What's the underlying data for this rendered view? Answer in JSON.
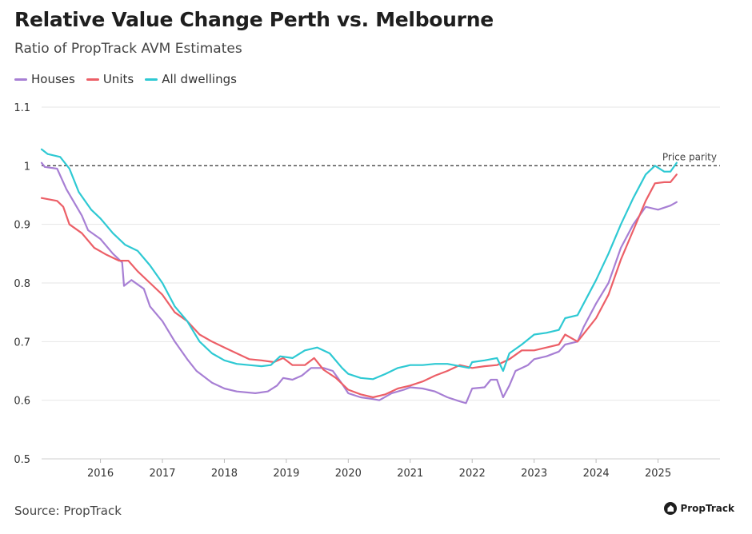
{
  "title": "Relative Value Change Perth vs. Melbourne",
  "subtitle": "Ratio of PropTrack AVM Estimates",
  "source": "Source: PropTrack",
  "brand": "PropTrack",
  "chart_data": {
    "type": "line",
    "title": "Relative Value Change Perth vs. Melbourne",
    "subtitle": "Ratio of PropTrack AVM Estimates",
    "xlim": [
      2015.05,
      2026.0
    ],
    "ylim": [
      0.5,
      1.1
    ],
    "x_ticks": [
      2016,
      2017,
      2018,
      2019,
      2020,
      2021,
      2022,
      2023,
      2024,
      2025
    ],
    "x_tick_labels": [
      "2016",
      "2017",
      "2018",
      "2019",
      "2020",
      "2021",
      "2022",
      "2023",
      "2024",
      "2025"
    ],
    "y_ticks": [
      0.5,
      0.6,
      0.7,
      0.8,
      0.9,
      1.0,
      1.1
    ],
    "y_tick_labels": [
      "0.5",
      "0.6",
      "0.7",
      "0.8",
      "0.9",
      "1",
      "1.1"
    ],
    "grid": "horizontal",
    "legend_position": "top-left",
    "reference_line": {
      "y": 1.0,
      "label": "Price parity",
      "style": "dashed",
      "color": "#444444"
    },
    "series": [
      {
        "name": "Houses",
        "color": "#a77fd4",
        "points": [
          [
            2015.05,
            1.005
          ],
          [
            2015.1,
            0.998
          ],
          [
            2015.3,
            0.995
          ],
          [
            2015.45,
            0.96
          ],
          [
            2015.7,
            0.915
          ],
          [
            2015.8,
            0.89
          ],
          [
            2016.0,
            0.875
          ],
          [
            2016.2,
            0.85
          ],
          [
            2016.35,
            0.835
          ],
          [
            2016.38,
            0.795
          ],
          [
            2016.5,
            0.805
          ],
          [
            2016.7,
            0.79
          ],
          [
            2016.8,
            0.76
          ],
          [
            2017.0,
            0.735
          ],
          [
            2017.2,
            0.7
          ],
          [
            2017.4,
            0.67
          ],
          [
            2017.55,
            0.65
          ],
          [
            2017.8,
            0.63
          ],
          [
            2018.0,
            0.62
          ],
          [
            2018.2,
            0.615
          ],
          [
            2018.5,
            0.612
          ],
          [
            2018.7,
            0.615
          ],
          [
            2018.85,
            0.625
          ],
          [
            2018.95,
            0.638
          ],
          [
            2019.1,
            0.635
          ],
          [
            2019.25,
            0.642
          ],
          [
            2019.4,
            0.655
          ],
          [
            2019.6,
            0.655
          ],
          [
            2019.75,
            0.65
          ],
          [
            2019.9,
            0.628
          ],
          [
            2020.0,
            0.612
          ],
          [
            2020.2,
            0.605
          ],
          [
            2020.4,
            0.602
          ],
          [
            2020.5,
            0.6
          ],
          [
            2020.7,
            0.612
          ],
          [
            2020.9,
            0.618
          ],
          [
            2021.0,
            0.622
          ],
          [
            2021.2,
            0.62
          ],
          [
            2021.4,
            0.615
          ],
          [
            2021.6,
            0.605
          ],
          [
            2021.8,
            0.598
          ],
          [
            2021.9,
            0.595
          ],
          [
            2022.0,
            0.62
          ],
          [
            2022.2,
            0.622
          ],
          [
            2022.3,
            0.635
          ],
          [
            2022.4,
            0.635
          ],
          [
            2022.5,
            0.605
          ],
          [
            2022.6,
            0.625
          ],
          [
            2022.7,
            0.65
          ],
          [
            2022.9,
            0.66
          ],
          [
            2023.0,
            0.67
          ],
          [
            2023.2,
            0.675
          ],
          [
            2023.4,
            0.683
          ],
          [
            2023.5,
            0.695
          ],
          [
            2023.7,
            0.7
          ],
          [
            2023.8,
            0.725
          ],
          [
            2024.0,
            0.765
          ],
          [
            2024.2,
            0.8
          ],
          [
            2024.4,
            0.86
          ],
          [
            2024.6,
            0.9
          ],
          [
            2024.8,
            0.93
          ],
          [
            2025.0,
            0.925
          ],
          [
            2025.2,
            0.932
          ],
          [
            2025.3,
            0.938
          ]
        ]
      },
      {
        "name": "Units",
        "color": "#ec5f67",
        "points": [
          [
            2015.05,
            0.945
          ],
          [
            2015.3,
            0.94
          ],
          [
            2015.4,
            0.93
          ],
          [
            2015.5,
            0.9
          ],
          [
            2015.7,
            0.885
          ],
          [
            2015.9,
            0.86
          ],
          [
            2016.1,
            0.848
          ],
          [
            2016.3,
            0.838
          ],
          [
            2016.45,
            0.838
          ],
          [
            2016.6,
            0.82
          ],
          [
            2016.8,
            0.8
          ],
          [
            2017.0,
            0.78
          ],
          [
            2017.2,
            0.75
          ],
          [
            2017.4,
            0.735
          ],
          [
            2017.6,
            0.712
          ],
          [
            2017.8,
            0.7
          ],
          [
            2018.0,
            0.69
          ],
          [
            2018.2,
            0.68
          ],
          [
            2018.4,
            0.67
          ],
          [
            2018.6,
            0.668
          ],
          [
            2018.8,
            0.665
          ],
          [
            2018.95,
            0.672
          ],
          [
            2019.1,
            0.66
          ],
          [
            2019.3,
            0.66
          ],
          [
            2019.45,
            0.672
          ],
          [
            2019.6,
            0.652
          ],
          [
            2019.8,
            0.638
          ],
          [
            2020.0,
            0.618
          ],
          [
            2020.2,
            0.61
          ],
          [
            2020.4,
            0.605
          ],
          [
            2020.6,
            0.61
          ],
          [
            2020.8,
            0.62
          ],
          [
            2021.0,
            0.625
          ],
          [
            2021.2,
            0.632
          ],
          [
            2021.4,
            0.642
          ],
          [
            2021.6,
            0.65
          ],
          [
            2021.8,
            0.66
          ],
          [
            2022.0,
            0.655
          ],
          [
            2022.2,
            0.658
          ],
          [
            2022.4,
            0.66
          ],
          [
            2022.6,
            0.67
          ],
          [
            2022.8,
            0.685
          ],
          [
            2023.0,
            0.685
          ],
          [
            2023.2,
            0.69
          ],
          [
            2023.4,
            0.695
          ],
          [
            2023.5,
            0.712
          ],
          [
            2023.7,
            0.7
          ],
          [
            2023.85,
            0.72
          ],
          [
            2024.0,
            0.74
          ],
          [
            2024.2,
            0.78
          ],
          [
            2024.4,
            0.84
          ],
          [
            2024.6,
            0.89
          ],
          [
            2024.8,
            0.94
          ],
          [
            2024.95,
            0.97
          ],
          [
            2025.1,
            0.972
          ],
          [
            2025.2,
            0.972
          ],
          [
            2025.3,
            0.985
          ]
        ]
      },
      {
        "name": "All dwellings",
        "color": "#2ec9d3",
        "points": [
          [
            2015.05,
            1.028
          ],
          [
            2015.15,
            1.02
          ],
          [
            2015.35,
            1.015
          ],
          [
            2015.5,
            0.995
          ],
          [
            2015.65,
            0.955
          ],
          [
            2015.85,
            0.925
          ],
          [
            2016.0,
            0.91
          ],
          [
            2016.2,
            0.885
          ],
          [
            2016.4,
            0.865
          ],
          [
            2016.6,
            0.855
          ],
          [
            2016.8,
            0.83
          ],
          [
            2017.0,
            0.8
          ],
          [
            2017.2,
            0.76
          ],
          [
            2017.4,
            0.735
          ],
          [
            2017.6,
            0.7
          ],
          [
            2017.8,
            0.68
          ],
          [
            2018.0,
            0.668
          ],
          [
            2018.2,
            0.662
          ],
          [
            2018.4,
            0.66
          ],
          [
            2018.6,
            0.658
          ],
          [
            2018.75,
            0.66
          ],
          [
            2018.9,
            0.675
          ],
          [
            2019.1,
            0.672
          ],
          [
            2019.3,
            0.685
          ],
          [
            2019.5,
            0.69
          ],
          [
            2019.7,
            0.68
          ],
          [
            2019.9,
            0.655
          ],
          [
            2020.0,
            0.645
          ],
          [
            2020.2,
            0.638
          ],
          [
            2020.4,
            0.636
          ],
          [
            2020.6,
            0.645
          ],
          [
            2020.8,
            0.655
          ],
          [
            2021.0,
            0.66
          ],
          [
            2021.2,
            0.66
          ],
          [
            2021.4,
            0.662
          ],
          [
            2021.6,
            0.662
          ],
          [
            2021.8,
            0.658
          ],
          [
            2021.95,
            0.655
          ],
          [
            2022.0,
            0.665
          ],
          [
            2022.2,
            0.668
          ],
          [
            2022.4,
            0.672
          ],
          [
            2022.5,
            0.65
          ],
          [
            2022.6,
            0.68
          ],
          [
            2022.8,
            0.695
          ],
          [
            2023.0,
            0.712
          ],
          [
            2023.2,
            0.715
          ],
          [
            2023.4,
            0.72
          ],
          [
            2023.5,
            0.74
          ],
          [
            2023.7,
            0.745
          ],
          [
            2023.85,
            0.775
          ],
          [
            2024.0,
            0.805
          ],
          [
            2024.2,
            0.85
          ],
          [
            2024.4,
            0.9
          ],
          [
            2024.6,
            0.945
          ],
          [
            2024.8,
            0.985
          ],
          [
            2024.95,
            1.0
          ],
          [
            2025.1,
            0.99
          ],
          [
            2025.2,
            0.99
          ],
          [
            2025.3,
            1.005
          ]
        ]
      }
    ]
  }
}
